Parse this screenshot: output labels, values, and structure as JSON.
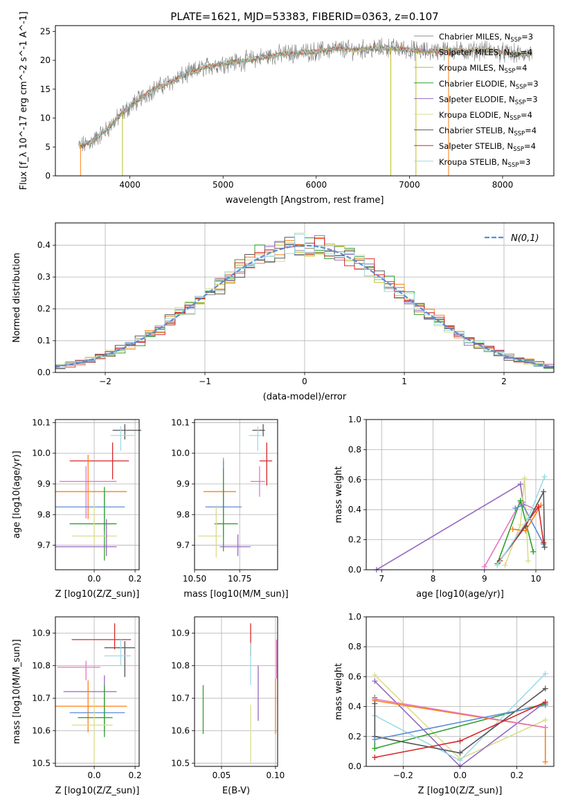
{
  "figure_title": "PLATE=1621, MJD=53383, FIBERID=0363, z=0.107",
  "colors": {
    "Chabrier MILES": "#8c8c8c",
    "Salpeter MILES": "#ff7f0e",
    "Kroupa MILES": "#bcbd22",
    "Chabrier ELODIE": "#2ca02c",
    "Salpeter ELODIE": "#9467bd",
    "Kroupa ELODIE": "#dbdb8d",
    "Chabrier STELIB": "#555555",
    "Salpeter STELIB": "#d62728",
    "Kroupa STELIB": "#9edae5",
    "gauss": "#5b8bd6"
  },
  "chart_data": [
    {
      "id": "spectrum",
      "type": "line",
      "title": "PLATE=1621, MJD=53383, FIBERID=0363, z=0.107",
      "xlabel": "wavelength [Angstrom, rest frame]",
      "ylabel": "Flux [f_λ 10^-17 erg cm^-2 s^-1 A^-1]",
      "xlim": [
        3200,
        8550
      ],
      "ylim": [
        0,
        26
      ],
      "xticks": [
        4000,
        5000,
        6000,
        7000,
        8000
      ],
      "yticks": [
        0,
        5,
        10,
        15,
        20,
        25
      ],
      "grid": false,
      "legend_position": "right",
      "legend": [
        {
          "label": "Chabrier MILES, N_SSP=3",
          "color": "#8c8c8c"
        },
        {
          "label": "Salpeter MILES, N_SSP=4",
          "color": "#ff7f0e"
        },
        {
          "label": "Kroupa MILES, N_SSP=4",
          "color": "#bcbd22"
        },
        {
          "label": "Chabrier ELODIE, N_SSP=3",
          "color": "#2ca02c"
        },
        {
          "label": "Salpeter ELODIE, N_SSP=3",
          "color": "#9467bd"
        },
        {
          "label": "Kroupa ELODIE, N_SSP=4",
          "color": "#dbdb8d"
        },
        {
          "label": "Chabrier STELIB, N_SSP=4",
          "color": "#555555"
        },
        {
          "label": "Salpeter STELIB, N_SSP=4",
          "color": "#d62728"
        },
        {
          "label": "Kroupa STELIB, N_SSP=3",
          "color": "#9edae5"
        }
      ],
      "continuum": [
        {
          "x": 3450,
          "y": 5.0
        },
        {
          "x": 3600,
          "y": 6.0
        },
        {
          "x": 3750,
          "y": 8.0
        },
        {
          "x": 3900,
          "y": 10.5
        },
        {
          "x": 4000,
          "y": 12.0
        },
        {
          "x": 4200,
          "y": 14.5
        },
        {
          "x": 4400,
          "y": 16.0
        },
        {
          "x": 4600,
          "y": 17.5
        },
        {
          "x": 4800,
          "y": 18.8
        },
        {
          "x": 5000,
          "y": 19.5
        },
        {
          "x": 5200,
          "y": 19.8
        },
        {
          "x": 5400,
          "y": 20.5
        },
        {
          "x": 5600,
          "y": 21.0
        },
        {
          "x": 5800,
          "y": 21.3
        },
        {
          "x": 6000,
          "y": 21.5
        },
        {
          "x": 6200,
          "y": 22.0
        },
        {
          "x": 6400,
          "y": 21.8
        },
        {
          "x": 6600,
          "y": 22.0
        },
        {
          "x": 6800,
          "y": 22.2
        },
        {
          "x": 7000,
          "y": 21.8
        },
        {
          "x": 7200,
          "y": 21.5
        },
        {
          "x": 7400,
          "y": 21.8
        },
        {
          "x": 7600,
          "y": 21.5
        },
        {
          "x": 7800,
          "y": 21.8
        },
        {
          "x": 8000,
          "y": 21.3
        },
        {
          "x": 8200,
          "y": 21.0
        },
        {
          "x": 8320,
          "y": 21.2
        }
      ],
      "spikes": [
        {
          "x": 3470,
          "color": "#ff7f0e"
        },
        {
          "x": 3920,
          "color": "#bcbd22"
        },
        {
          "x": 6800,
          "color": "#bcbd22"
        },
        {
          "x": 7070,
          "color": "#bcbd22"
        },
        {
          "x": 7420,
          "color": "#ff7f0e"
        }
      ]
    },
    {
      "id": "residuals",
      "type": "histogram",
      "xlabel": "(data-model)/error",
      "ylabel": "Normed distribution",
      "xlim": [
        -2.5,
        2.5
      ],
      "ylim": [
        0,
        0.47
      ],
      "xticks": [
        -2,
        -1,
        0,
        1,
        2
      ],
      "yticks": [
        0.0,
        0.1,
        0.2,
        0.3,
        0.4
      ],
      "grid": true,
      "bin_width": 0.1,
      "curve": {
        "name": "N(0,1)",
        "mean": 0,
        "sigma": 1,
        "style": "dashed",
        "color": "#5b8bd6"
      },
      "legend_position": "top-right"
    },
    {
      "id": "Z-vs-age",
      "type": "errorbar",
      "xlabel": "Z [log10(Z/Z_sun)]",
      "ylabel": "age [log10(age/yr)]",
      "xlim": [
        -0.19,
        0.22
      ],
      "ylim": [
        9.62,
        10.11
      ],
      "xticks": [
        -0.2,
        0.0,
        0.2
      ],
      "xtick_labels": [
        "−0.2",
        "0.0",
        "0.2"
      ],
      "yticks": [
        9.7,
        9.8,
        9.9,
        10.0,
        10.1
      ],
      "grid": true,
      "points": [
        {
          "color": "#555555",
          "x": 0.15,
          "xerr": [
            0.06,
            0.08
          ],
          "y": 10.075,
          "yerr": [
            0.03,
            0.02
          ]
        },
        {
          "color": "#9edae5",
          "x": 0.13,
          "xerr": [
            0.05,
            0.07
          ],
          "y": 10.058,
          "yerr": [
            0.05,
            0.03
          ]
        },
        {
          "color": "#d62728",
          "x": 0.09,
          "xerr": [
            0.21,
            0.08
          ],
          "y": 9.975,
          "yerr": [
            0.06,
            0.06
          ]
        },
        {
          "color": "#e377c2",
          "x": -0.04,
          "xerr": [
            0.13,
            0.15
          ],
          "y": 9.908,
          "yerr": [
            0.12,
            0.05
          ]
        },
        {
          "color": "#ff7f0e",
          "x": -0.03,
          "xerr": [
            0.16,
            0.19
          ],
          "y": 9.875,
          "yerr": [
            0.09,
            0.12
          ]
        },
        {
          "color": "#5b8bd6",
          "x": 0.05,
          "xerr": [
            0.24,
            0.1
          ],
          "y": 9.825,
          "yerr": [
            0.08,
            0.05
          ]
        },
        {
          "color": "#2ca02c",
          "x": 0.05,
          "xerr": [
            0.17,
            0.06
          ],
          "y": 9.77,
          "yerr": [
            0.12,
            0.12
          ]
        },
        {
          "color": "#dbdb8d",
          "x": 0.0,
          "xerr": [
            0.11,
            0.11
          ],
          "y": 9.73,
          "yerr": [
            0.04,
            0.1
          ]
        },
        {
          "color": "#9467bd",
          "x": 0.06,
          "xerr": [
            0.25,
            0.05
          ],
          "y": 9.695,
          "yerr": [
            0.03,
            0.09
          ]
        }
      ]
    },
    {
      "id": "mass-vs-age",
      "type": "errorbar",
      "xlabel": "mass [log10(M/M_sun)]",
      "ylabel": "",
      "xlim": [
        10.5,
        10.96
      ],
      "ylim": [
        9.62,
        10.11
      ],
      "xticks": [
        10.5,
        10.75
      ],
      "xtick_labels": [
        "10.50",
        "10.75"
      ],
      "yticks": [
        9.7,
        9.8,
        9.9,
        10.0,
        10.1
      ],
      "grid": true,
      "points": [
        {
          "color": "#555555",
          "x": 10.88,
          "xerr": [
            0.06,
            0.01
          ],
          "y": 10.075,
          "yerr": [
            0.02,
            0.02
          ]
        },
        {
          "color": "#9edae5",
          "x": 10.85,
          "xerr": [
            0.05,
            0.02
          ],
          "y": 10.058,
          "yerr": [
            0.05,
            0.03
          ]
        },
        {
          "color": "#d62728",
          "x": 10.9,
          "xerr": [
            0.04,
            0.03
          ],
          "y": 9.975,
          "yerr": [
            0.08,
            0.06
          ]
        },
        {
          "color": "#e377c2",
          "x": 10.86,
          "xerr": [
            0.05,
            0.03
          ],
          "y": 9.908,
          "yerr": [
            0.05,
            0.05
          ]
        },
        {
          "color": "#ff7f0e",
          "x": 10.66,
          "xerr": [
            0.11,
            0.07
          ],
          "y": 9.875,
          "yerr": [
            0.1,
            0.11
          ]
        },
        {
          "color": "#5b8bd6",
          "x": 10.66,
          "xerr": [
            0.1,
            0.1
          ],
          "y": 9.825,
          "yerr": [
            0.1,
            0.15
          ]
        },
        {
          "color": "#2ca02c",
          "x": 10.66,
          "xerr": [
            0.05,
            0.08
          ],
          "y": 9.77,
          "yerr": [
            0.09,
            0.18
          ]
        },
        {
          "color": "#dbdb8d",
          "x": 10.62,
          "xerr": [
            0.1,
            0.03
          ],
          "y": 9.73,
          "yerr": [
            0.07,
            0.1
          ]
        },
        {
          "color": "#9467bd",
          "x": 10.74,
          "xerr": [
            0.1,
            0.07
          ],
          "y": 9.695,
          "yerr": [
            0.03,
            0.04
          ]
        }
      ]
    },
    {
      "id": "age-vs-weight",
      "type": "line",
      "xlabel": "age [log10(age/yr)]",
      "ylabel": "mass weight",
      "xlim": [
        6.7,
        10.35
      ],
      "ylim": [
        0,
        1
      ],
      "xticks": [
        7,
        8,
        9,
        10
      ],
      "yticks": [
        0.0,
        0.2,
        0.4,
        0.6,
        0.8,
        1.0
      ],
      "grid": true,
      "series": [
        {
          "color": "#9467bd",
          "x": [
            6.9,
            9.7,
            9.75
          ],
          "y": [
            0.0,
            0.57,
            0.45
          ]
        },
        {
          "color": "#e377c2",
          "x": [
            9.0,
            9.7,
            10.0
          ],
          "y": [
            0.02,
            0.45,
            0.4
          ]
        },
        {
          "color": "#dbdb8d",
          "x": [
            9.4,
            9.7,
            9.78,
            9.85
          ],
          "y": [
            0.03,
            0.3,
            0.61,
            0.06
          ]
        },
        {
          "color": "#2ca02c",
          "x": [
            9.25,
            9.7,
            9.95
          ],
          "y": [
            0.04,
            0.46,
            0.12
          ]
        },
        {
          "color": "#5b8bd6",
          "x": [
            9.6,
            9.75,
            10.15
          ],
          "y": [
            0.41,
            0.43,
            0.17
          ]
        },
        {
          "color": "#ff7f0e",
          "x": [
            9.55,
            9.8,
            10.1
          ],
          "y": [
            0.27,
            0.26,
            0.43
          ]
        },
        {
          "color": "#555555",
          "x": [
            9.3,
            9.8,
            10.15,
            10.17
          ],
          "y": [
            0.06,
            0.29,
            0.52,
            0.15
          ]
        },
        {
          "color": "#d62728",
          "x": [
            9.3,
            10.05,
            10.15
          ],
          "y": [
            0.06,
            0.42,
            0.18
          ]
        },
        {
          "color": "#9edae5",
          "x": [
            9.25,
            9.85,
            10.17
          ],
          "y": [
            0.03,
            0.34,
            0.62
          ]
        }
      ]
    },
    {
      "id": "Z-vs-mass",
      "type": "errorbar",
      "xlabel": "Z [log10(Z/Z_sun)]",
      "ylabel": "mass [log10(M/M_sun)]",
      "xlim": [
        -0.19,
        0.22
      ],
      "ylim": [
        10.49,
        10.95
      ],
      "xticks": [
        -0.2,
        0.0,
        0.2
      ],
      "xtick_labels": [
        "−0.2",
        "0.0",
        "0.2"
      ],
      "yticks": [
        10.5,
        10.6,
        10.7,
        10.8,
        10.9
      ],
      "grid": true,
      "points": [
        {
          "color": "#d62728",
          "x": 0.1,
          "xerr": [
            0.21,
            0.08
          ],
          "y": 10.88,
          "yerr": [
            0.03,
            0.05
          ]
        },
        {
          "color": "#555555",
          "x": 0.15,
          "xerr": [
            0.1,
            0.05
          ],
          "y": 10.855,
          "yerr": [
            0.09,
            0.02
          ]
        },
        {
          "color": "#9edae5",
          "x": 0.13,
          "xerr": [
            0.08,
            0.05
          ],
          "y": 10.83,
          "yerr": [
            0.03,
            0.05
          ]
        },
        {
          "color": "#e377c2",
          "x": -0.04,
          "xerr": [
            0.14,
            0.07
          ],
          "y": 10.795,
          "yerr": [
            0.04,
            0.02
          ]
        },
        {
          "color": "#9467bd",
          "x": 0.05,
          "xerr": [
            0.2,
            0.06
          ],
          "y": 10.72,
          "yerr": [
            0.1,
            0.05
          ]
        },
        {
          "color": "#ff7f0e",
          "x": -0.03,
          "xerr": [
            0.16,
            0.19
          ],
          "y": 10.675,
          "yerr": [
            0.08,
            0.08
          ]
        },
        {
          "color": "#5b8bd6",
          "x": 0.05,
          "xerr": [
            0.17,
            0.1
          ],
          "y": 10.655,
          "yerr": [
            0.06,
            0.05
          ]
        },
        {
          "color": "#2ca02c",
          "x": 0.05,
          "xerr": [
            0.13,
            0.04
          ],
          "y": 10.64,
          "yerr": [
            0.06,
            0.1
          ]
        },
        {
          "color": "#dbdb8d",
          "x": 0.0,
          "xerr": [
            0.11,
            0.09
          ],
          "y": 10.617,
          "yerr": [
            0.12,
            0.08
          ]
        }
      ]
    },
    {
      "id": "ebv-vs-mass",
      "type": "errorbar",
      "xlabel": "E(B-V)",
      "ylabel": "",
      "xlim": [
        0.025,
        0.102
      ],
      "ylim": [
        10.49,
        10.95
      ],
      "xticks": [
        0.05,
        0.1
      ],
      "xtick_labels": [
        "0.05",
        "0.10"
      ],
      "yticks": [
        10.5,
        10.6,
        10.7,
        10.8,
        10.9
      ],
      "grid": true,
      "points": [
        {
          "color": "#2ca02c",
          "x": 0.033,
          "xerr": [
            0,
            0
          ],
          "y": 10.66,
          "yerr": [
            0.07,
            0.08
          ]
        },
        {
          "color": "#d62728",
          "x": 0.077,
          "xerr": [
            0,
            0
          ],
          "y": 10.89,
          "yerr": [
            0.06,
            0.04
          ]
        },
        {
          "color": "#9edae5",
          "x": 0.077,
          "xerr": [
            0,
            0
          ],
          "y": 10.82,
          "yerr": [
            0.08,
            0.05
          ]
        },
        {
          "color": "#dbdb8d",
          "x": 0.077,
          "xerr": [
            0,
            0
          ],
          "y": 10.6,
          "yerr": [
            0.1,
            0.08
          ]
        },
        {
          "color": "#9467bd",
          "x": 0.084,
          "xerr": [
            0,
            0
          ],
          "y": 10.72,
          "yerr": [
            0.09,
            0.08
          ]
        },
        {
          "color": "#ff7f0e",
          "x": 0.1,
          "xerr": [
            0,
            0
          ],
          "y": 10.68,
          "yerr": [
            0.09,
            0.08
          ]
        },
        {
          "color": "#e377c2",
          "x": 0.101,
          "xerr": [
            0,
            0
          ],
          "y": 10.82,
          "yerr": [
            0.06,
            0.06
          ]
        }
      ]
    },
    {
      "id": "Z-vs-weight",
      "type": "line",
      "xlabel": "Z [log10(Z/Z_sun)]",
      "ylabel": "mass weight",
      "xlim": [
        -0.33,
        0.33
      ],
      "ylim": [
        0,
        1
      ],
      "xticks": [
        -0.2,
        0.0,
        0.2
      ],
      "xtick_labels": [
        "−0.2",
        "0.0",
        "0.2"
      ],
      "yticks": [
        0.0,
        0.2,
        0.4,
        0.6,
        0.8,
        1.0
      ],
      "grid": true,
      "series": [
        {
          "color": "#dbdb8d",
          "x": [
            -0.3,
            0.0,
            0.3
          ],
          "y": [
            0.61,
            0.05,
            0.31
          ]
        },
        {
          "color": "#9467bd",
          "x": [
            -0.3,
            0.0,
            0.3
          ],
          "y": [
            0.57,
            0.0,
            0.43
          ]
        },
        {
          "color": "#2ca02c",
          "x": [
            -0.3,
            -0.3,
            0.3
          ],
          "y": [
            0.46,
            0.12,
            0.42
          ]
        },
        {
          "color": "#ff7f0e",
          "x": [
            -0.3,
            0.3,
            0.3
          ],
          "y": [
            0.44,
            0.26,
            0.03
          ]
        },
        {
          "color": "#e377c2",
          "x": [
            -0.3,
            0.3
          ],
          "y": [
            0.45,
            0.26
          ]
        },
        {
          "color": "#9edae5",
          "x": [
            -0.3,
            0.0,
            0.3
          ],
          "y": [
            0.34,
            0.04,
            0.62
          ]
        },
        {
          "color": "#555555",
          "x": [
            -0.3,
            -0.3,
            0.0,
            0.3
          ],
          "y": [
            0.42,
            0.2,
            0.09,
            0.52
          ]
        },
        {
          "color": "#5b8bd6",
          "x": [
            -0.3,
            0.3
          ],
          "y": [
            0.18,
            0.41
          ]
        },
        {
          "color": "#d62728",
          "x": [
            -0.3,
            0.0,
            0.3
          ],
          "y": [
            0.06,
            0.17,
            0.43
          ]
        }
      ]
    }
  ]
}
